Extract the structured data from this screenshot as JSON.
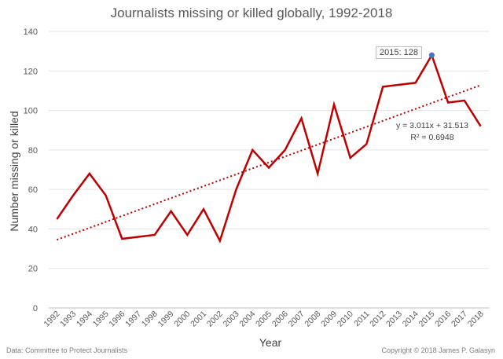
{
  "chart_data": {
    "type": "line",
    "title": "Journalists missing or killed globally, 1992-2018",
    "xlabel": "Year",
    "ylabel": "Number missing or killed",
    "categories": [
      "1992",
      "1993",
      "1994",
      "1995",
      "1996",
      "1997",
      "1998",
      "1999",
      "2000",
      "2001",
      "2002",
      "2003",
      "2004",
      "2005",
      "2006",
      "2007",
      "2008",
      "2009",
      "2010",
      "2011",
      "2012",
      "2013",
      "2014",
      "2015",
      "2016",
      "2017",
      "2018"
    ],
    "series": [
      {
        "name": "Journalists missing or killed",
        "color": "#c00000",
        "values": [
          45,
          57,
          68,
          57,
          35,
          36,
          37,
          49,
          37,
          50,
          34,
          60,
          80,
          71,
          80,
          96,
          68,
          103,
          76,
          83,
          112,
          113,
          114,
          128,
          104,
          105,
          92
        ]
      }
    ],
    "trendline": {
      "type": "linear",
      "slope": 3.011,
      "intercept": 31.513,
      "color": "#c00000",
      "equation": "y = 3.011x + 31.513",
      "r_squared": "R² = 0.6948"
    },
    "highlight": {
      "category": "2015",
      "value": 128,
      "label": "2015: 128",
      "color": "#4472c4"
    },
    "yticks": [
      0,
      20,
      40,
      60,
      80,
      100,
      120,
      140
    ],
    "ylim": [
      0,
      140
    ],
    "grid": true,
    "source": "Data: Committee to Protect Journalists",
    "copyright": "Copyright © 2018 James P. Galasyn"
  }
}
